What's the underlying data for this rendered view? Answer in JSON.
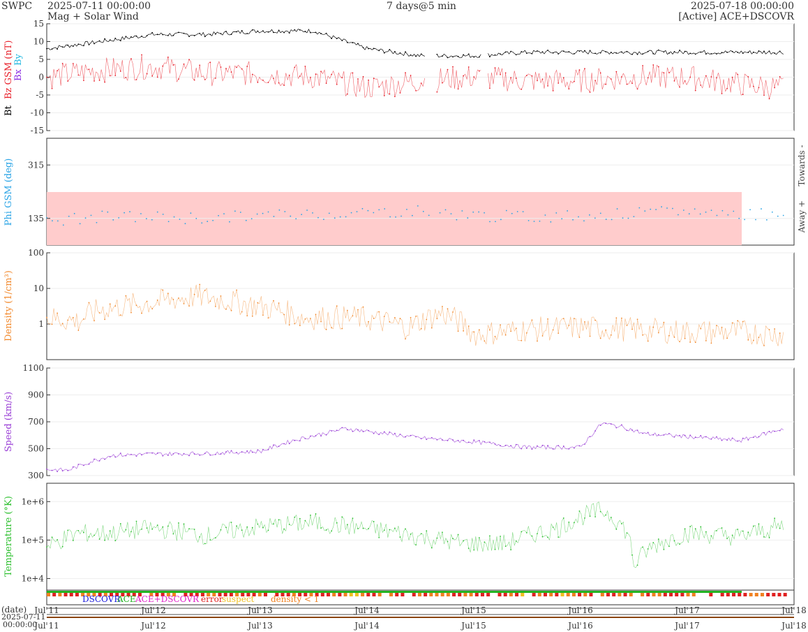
{
  "header": {
    "org": "SWPC",
    "start": "2025-07-11 00:00:00",
    "subtitle": "Mag + Solar Wind",
    "span": "7 days@5 min",
    "end": "2025-07-18 00:00:00",
    "source": "[Active] ACE+DSCOVR"
  },
  "colors": {
    "bt": "#000000",
    "bz": "#e8202a",
    "bx": "#8a2be2",
    "by": "#22b8e0",
    "phi": "#2aa4e6",
    "phi_band": "#ffcccc",
    "density": "#f28a2e",
    "speed": "#9a3fd6",
    "temperature": "#2ec030",
    "dscovr": "#1a1adc",
    "ace": "#22b322",
    "ace_dscovr": "#e020c8",
    "error": "#e02020",
    "suspect": "#f0c020",
    "density_low": "#f08020"
  },
  "chart_data": [
    {
      "type": "line",
      "title": "Mag",
      "ylabel_parts": [
        "Bt",
        "Bz GSM (nT)",
        "Bx",
        "By"
      ],
      "ylim": [
        -15,
        15
      ],
      "yticks": [
        "15",
        "10",
        "5",
        "0",
        "-5",
        "-10",
        "-15"
      ],
      "xlim": [
        0,
        7
      ],
      "x": [
        0,
        0.5,
        1,
        1.5,
        2,
        2.5,
        3,
        3.5,
        4,
        4.5,
        5,
        5.5,
        6,
        6.5,
        6.9
      ],
      "series": [
        {
          "name": "Bt",
          "values": [
            8,
            10,
            12,
            12,
            13,
            13,
            8,
            6,
            6,
            7,
            7,
            7,
            7,
            7,
            7
          ]
        },
        {
          "name": "Bz GSM",
          "values": [
            0,
            2,
            3,
            1,
            1,
            0,
            -3,
            -1,
            0,
            -1,
            -1,
            0,
            0,
            -2,
            -3
          ]
        }
      ]
    },
    {
      "type": "scatter",
      "ylabel": "Phi GSM (deg)",
      "yticks": [
        "315",
        "135"
      ],
      "side_labels": [
        "Towards -",
        "Away +"
      ],
      "ylim": [
        45,
        405
      ],
      "xlim": [
        0,
        7
      ],
      "x": [
        0,
        0.5,
        1,
        1.5,
        2,
        2.5,
        3,
        3.5,
        4,
        4.5,
        5,
        5.5,
        6,
        6.5,
        6.9
      ],
      "values": [
        125,
        140,
        140,
        135,
        145,
        150,
        155,
        160,
        145,
        140,
        145,
        150,
        160,
        150,
        150
      ]
    },
    {
      "type": "line",
      "ylabel": "Density (1/cm³)",
      "yscale": "log",
      "ylim": [
        0.1,
        100
      ],
      "yticks": [
        "100",
        "10",
        "1"
      ],
      "xlim": [
        0,
        7
      ],
      "x": [
        0,
        0.3,
        0.5,
        1,
        1.4,
        1.9,
        2.4,
        2.9,
        3.4,
        3.7,
        4,
        4.5,
        5,
        5.5,
        6,
        6.5,
        6.9
      ],
      "values": [
        1.5,
        1.2,
        2.5,
        4,
        6,
        3.5,
        1.5,
        1.5,
        0.8,
        2,
        0.5,
        0.7,
        0.8,
        0.7,
        0.6,
        0.6,
        0.5
      ]
    },
    {
      "type": "line",
      "ylabel": "Speed (km/s)",
      "ylim": [
        300,
        1100
      ],
      "yticks": [
        "1100",
        "900",
        "700",
        "500",
        "300"
      ],
      "xlim": [
        0,
        7
      ],
      "x": [
        0,
        0.2,
        0.4,
        0.6,
        1,
        1.5,
        2,
        2.3,
        2.8,
        3.2,
        3.5,
        4,
        4.5,
        5,
        5.2,
        5.4,
        5.6,
        6,
        6.5,
        6.9
      ],
      "values": [
        345,
        340,
        400,
        450,
        460,
        465,
        480,
        560,
        650,
        610,
        580,
        550,
        510,
        510,
        690,
        660,
        610,
        590,
        560,
        650
      ]
    },
    {
      "type": "line",
      "ylabel": "Temperature (°K)",
      "yscale": "log",
      "ylim": [
        5000,
        3000000
      ],
      "yticks": [
        "1e+6",
        "1e+5",
        "1e+4"
      ],
      "xlim": [
        0,
        7
      ],
      "x": [
        0,
        0.3,
        0.6,
        1,
        1.5,
        2,
        2.5,
        3,
        3.5,
        3.9,
        4.3,
        4.8,
        5.2,
        5.5,
        6,
        6.5,
        6.9
      ],
      "values": [
        60000,
        150000,
        150000,
        200000,
        130000,
        220000,
        280000,
        200000,
        120000,
        80000,
        80000,
        200000,
        600000,
        20000,
        150000,
        120000,
        230000
      ]
    }
  ],
  "status_legend": {
    "dscovr": "DSCOVR",
    "ace": "ACE",
    "ace_dscovr": "ACE+DSCOVR",
    "error": "error",
    "suspect": "suspect",
    "density_low": "density < 1"
  },
  "time_axis": {
    "date_label": "(date)",
    "start_date": "2025-07-11",
    "start_time": "00:00:00",
    "ticks": [
      "Jul 11",
      "Jul 12",
      "Jul 13",
      "Jul 14",
      "Jul 15",
      "Jul 16",
      "Jul 17",
      "Jul 18"
    ]
  }
}
